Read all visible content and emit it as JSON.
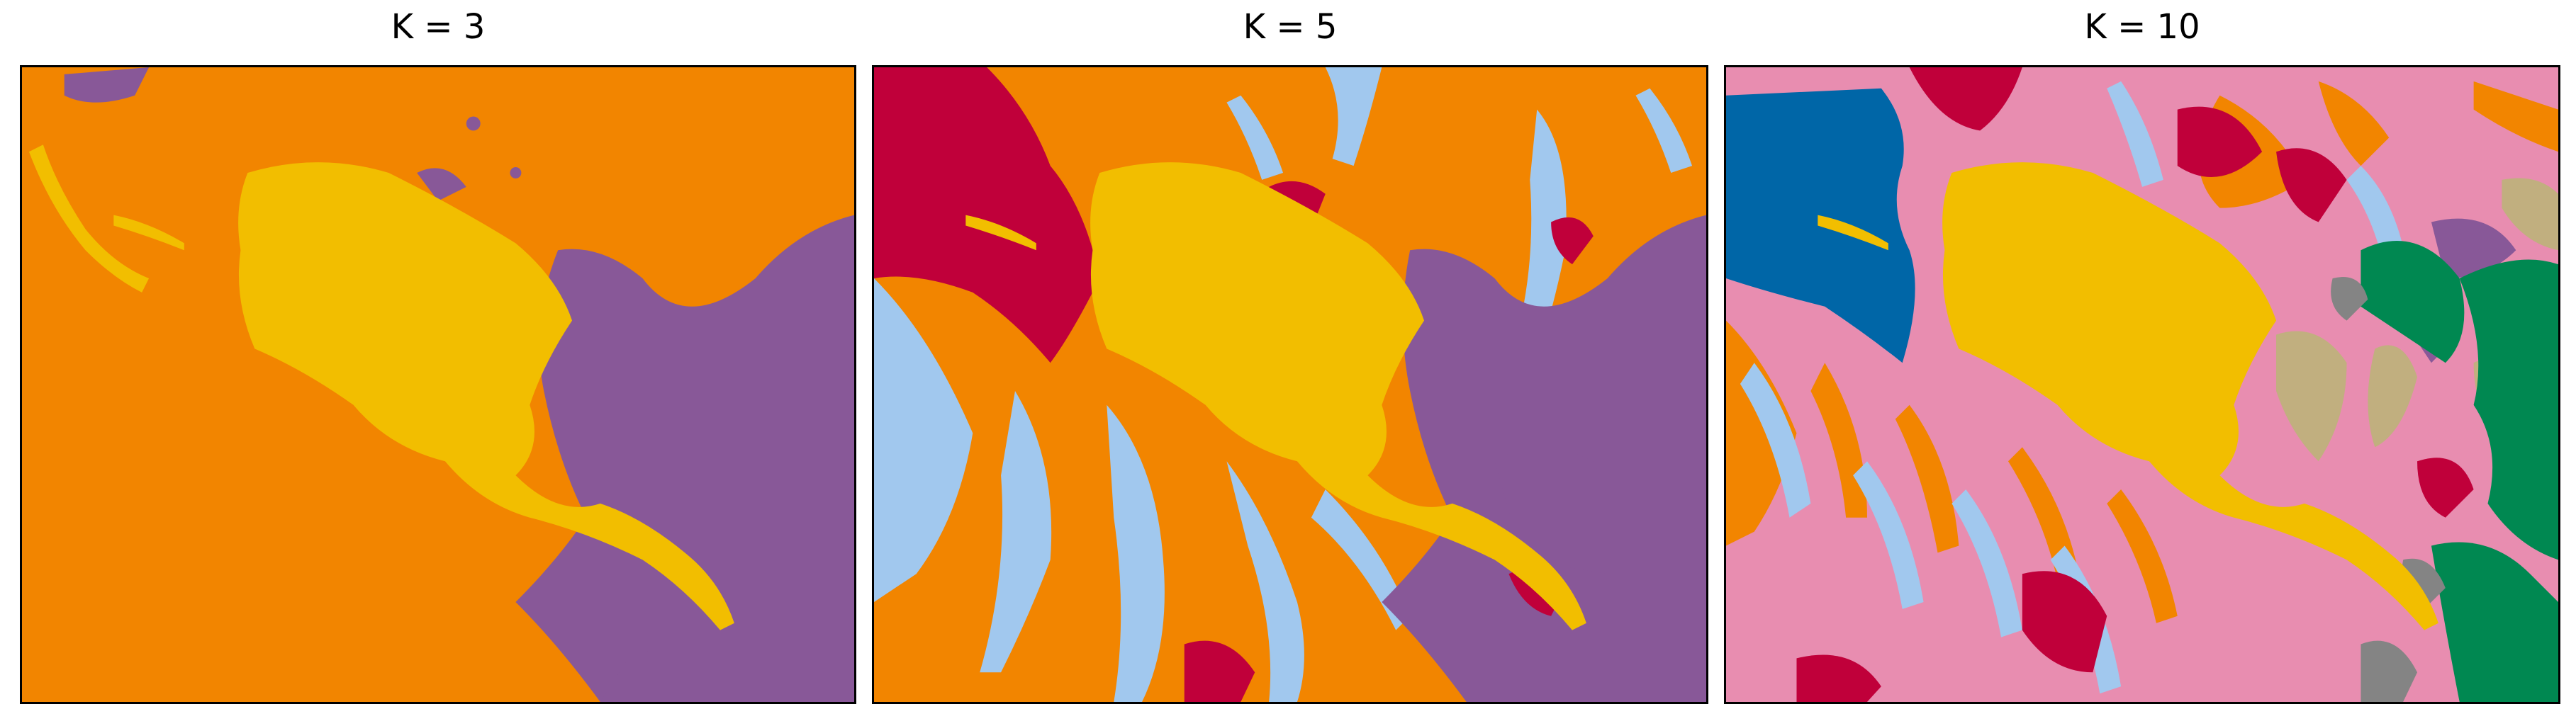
{
  "panels": [
    {
      "title": "K = 3",
      "clusters": 3
    },
    {
      "title": "K = 5",
      "clusters": 5
    },
    {
      "title": "K = 10",
      "clusters": 10
    }
  ],
  "palette": {
    "orange": "#F28500",
    "yellow": "#F2BE00",
    "purple": "#885898",
    "crimson": "#C0003A",
    "light_blue": "#A1C8EE",
    "blue": "#0066A7",
    "pink": "#E88DB0",
    "tan": "#C1AF7F",
    "green": "#008851",
    "gray": "#848484"
  }
}
